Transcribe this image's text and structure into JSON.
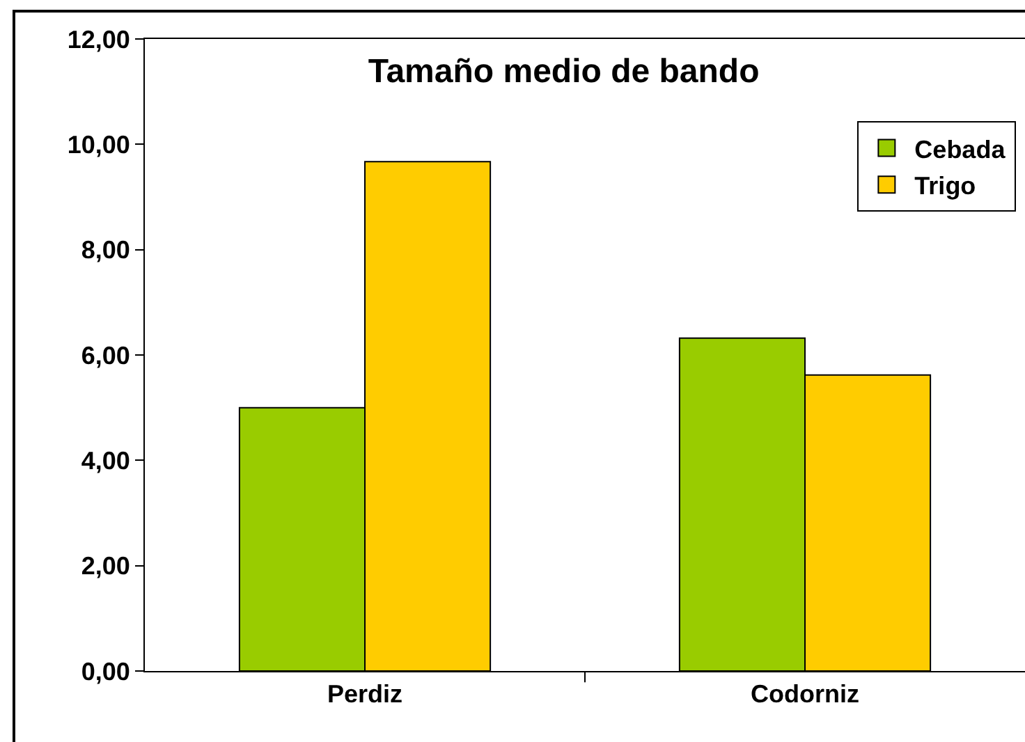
{
  "chart_data": {
    "type": "bar",
    "title": "Tamaño medio de bando",
    "categories": [
      "Perdiz",
      "Codorniz"
    ],
    "series": [
      {
        "name": "Cebada",
        "color": "#99cc00",
        "values": [
          5.0,
          6.32
        ]
      },
      {
        "name": "Trigo",
        "color": "#ffcc00",
        "values": [
          9.67,
          5.62
        ]
      }
    ],
    "ylim": [
      0,
      12
    ],
    "yticks": [
      {
        "value": 0,
        "label": "0,00"
      },
      {
        "value": 2,
        "label": "2,00"
      },
      {
        "value": 4,
        "label": "4,00"
      },
      {
        "value": 6,
        "label": "6,00"
      },
      {
        "value": 8,
        "label": "8,00"
      },
      {
        "value": 10,
        "label": "10,00"
      },
      {
        "value": 12,
        "label": "12,00"
      }
    ],
    "grid": false,
    "legend": "top right"
  }
}
